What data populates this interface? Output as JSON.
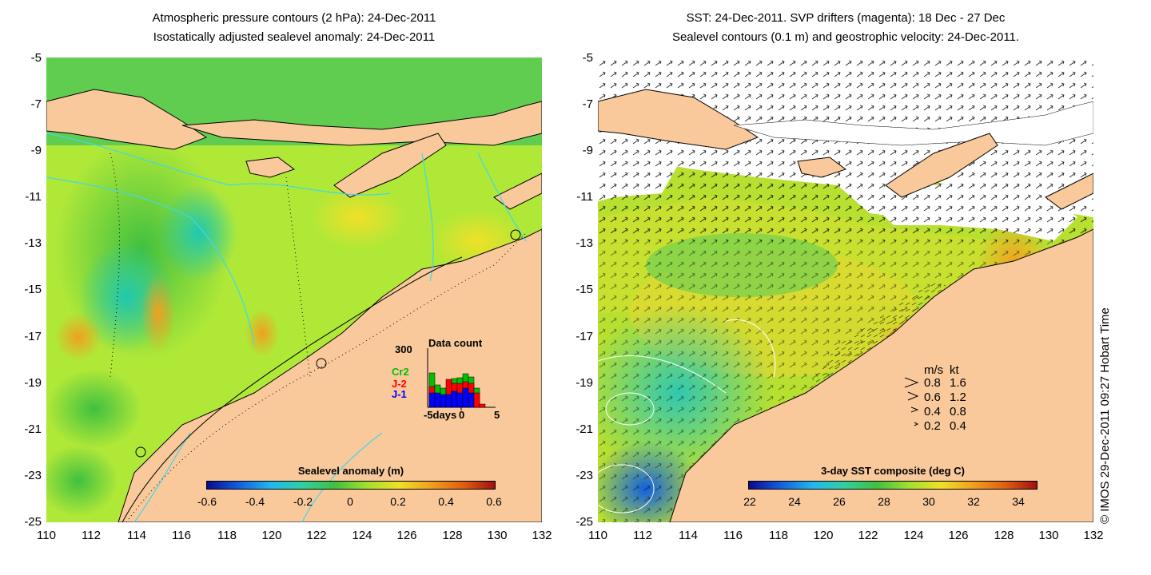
{
  "left_panel": {
    "title_line1": "Atmospheric pressure contours (2 hPa): 24-Dec-2011",
    "title_line2": "Isostatically adjusted sealevel anomaly: 24-Dec-2011",
    "y_ticks": [
      "-5",
      "-7",
      "-9",
      "-11",
      "-13",
      "-15",
      "-17",
      "-19",
      "-21",
      "-23",
      "-25"
    ],
    "x_ticks": [
      "110",
      "112",
      "114",
      "116",
      "118",
      "120",
      "122",
      "124",
      "126",
      "128",
      "130",
      "132"
    ],
    "colorbar": {
      "label": "Sealevel anomaly (m)",
      "ticks": [
        "-0.6",
        "-0.4",
        "-0.2",
        "0",
        "0.2",
        "0.4",
        "0.6"
      ]
    },
    "data_count": {
      "title": "Data count",
      "ymax_label": "300",
      "series": [
        {
          "name": "Cr2",
          "color": "#00c000"
        },
        {
          "name": "J-2",
          "color": "#ff0000"
        },
        {
          "name": "J-1",
          "color": "#0000ff"
        }
      ],
      "x_labels": [
        "-5days",
        "0",
        "5"
      ]
    }
  },
  "right_panel": {
    "title_line1": "SST: 24-Dec-2011. SVP drifters (magenta): 18 Dec - 27 Dec",
    "title_line2": "Sealevel contours (0.1 m) and geostrophic velocity: 24-Dec-2011.",
    "y_ticks": [
      "-5",
      "-7",
      "-9",
      "-11",
      "-13",
      "-15",
      "-17",
      "-19",
      "-21",
      "-23",
      "-25"
    ],
    "x_ticks": [
      "110",
      "112",
      "114",
      "116",
      "118",
      "120",
      "122",
      "124",
      "126",
      "128",
      "130",
      "132"
    ],
    "colorbar": {
      "label": "3-day SST composite (deg C)",
      "ticks": [
        "22",
        "24",
        "26",
        "28",
        "30",
        "32",
        "34"
      ]
    },
    "velocity_legend": {
      "header_ms": "m/s",
      "header_kt": "kt",
      "rows": [
        {
          "ms": "0.8",
          "kt": "1.6"
        },
        {
          "ms": "0.6",
          "kt": "1.2"
        },
        {
          "ms": "0.4",
          "kt": "0.8"
        },
        {
          "ms": "0.2",
          "kt": "0.4"
        }
      ]
    }
  },
  "credit": "© IMOS 29-Dec-2011 09:27 Hobart Time",
  "colors": {
    "land": "#f9c99b",
    "sea_mid": "#b8f02a",
    "sea_green": "#4ccc4c",
    "sea_cyan": "#20c8b0",
    "sea_yellow": "#f0e028",
    "sea_orange": "#f0a020",
    "contour": "#40d8e8"
  }
}
